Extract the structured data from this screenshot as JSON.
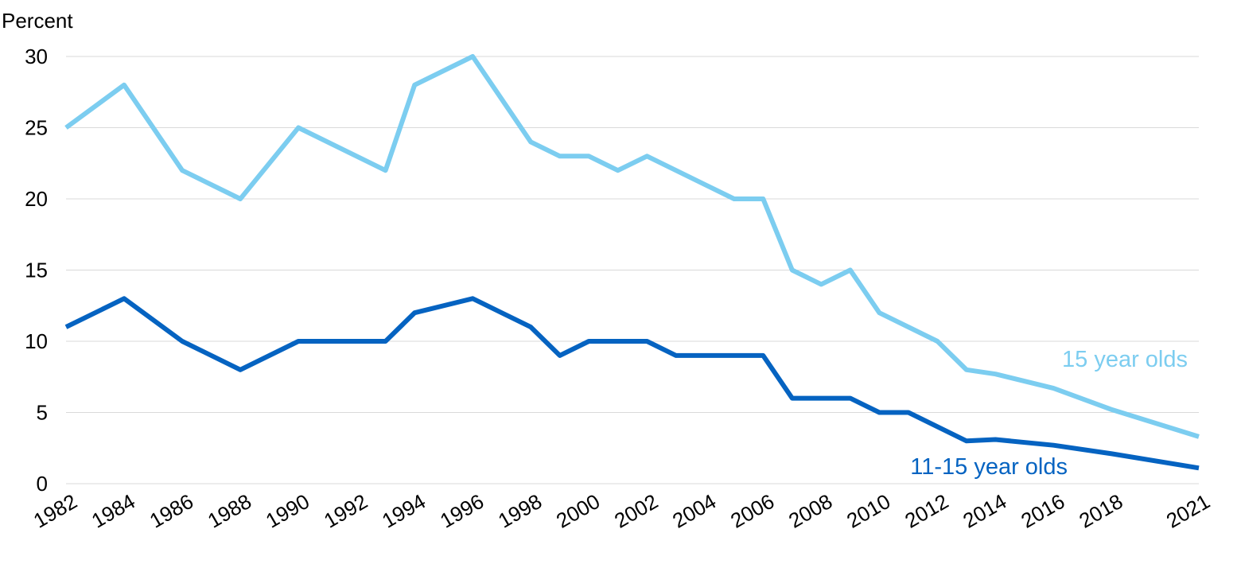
{
  "chart_data": {
    "type": "line",
    "ylabel": "Percent",
    "ylim": [
      0,
      30
    ],
    "yticks": [
      0,
      5,
      10,
      15,
      20,
      25,
      30
    ],
    "xlim": [
      1982,
      2021
    ],
    "xticks": [
      "1982",
      "1984",
      "1986",
      "1988",
      "1990",
      "1992",
      "1994",
      "1996",
      "1998",
      "2000",
      "2002",
      "2004",
      "2006",
      "2008",
      "2010",
      "2012",
      "2014",
      "2016",
      "2018",
      "2021"
    ],
    "grid": true,
    "series": [
      {
        "name": "15 year olds",
        "color": "#7ccdf0",
        "points": [
          [
            1982,
            25
          ],
          [
            1984,
            28
          ],
          [
            1986,
            22
          ],
          [
            1988,
            20
          ],
          [
            1990,
            25
          ],
          [
            1993,
            22
          ],
          [
            1994,
            28
          ],
          [
            1996,
            30
          ],
          [
            1998,
            24
          ],
          [
            1999,
            23
          ],
          [
            2000,
            23
          ],
          [
            2001,
            22
          ],
          [
            2002,
            23
          ],
          [
            2005,
            20
          ],
          [
            2006,
            20
          ],
          [
            2007,
            15
          ],
          [
            2008,
            14
          ],
          [
            2009,
            15
          ],
          [
            2010,
            12
          ],
          [
            2012,
            10
          ],
          [
            2013,
            8
          ],
          [
            2014,
            7.7
          ],
          [
            2016,
            6.7
          ],
          [
            2018,
            5.2
          ],
          [
            2021,
            3.3
          ]
        ]
      },
      {
        "name": "11-15 year olds",
        "color": "#0563c1",
        "points": [
          [
            1982,
            11
          ],
          [
            1984,
            13
          ],
          [
            1986,
            10
          ],
          [
            1988,
            8
          ],
          [
            1990,
            10
          ],
          [
            1993,
            10
          ],
          [
            1994,
            12
          ],
          [
            1996,
            13
          ],
          [
            1998,
            11
          ],
          [
            1999,
            9
          ],
          [
            2000,
            10
          ],
          [
            2002,
            10
          ],
          [
            2003,
            9
          ],
          [
            2006,
            9
          ],
          [
            2007,
            6
          ],
          [
            2009,
            6
          ],
          [
            2010,
            5
          ],
          [
            2011,
            5
          ],
          [
            2013,
            3
          ],
          [
            2014,
            3.1
          ],
          [
            2016,
            2.7
          ],
          [
            2018,
            2.1
          ],
          [
            2021,
            1.1
          ]
        ]
      }
    ]
  }
}
